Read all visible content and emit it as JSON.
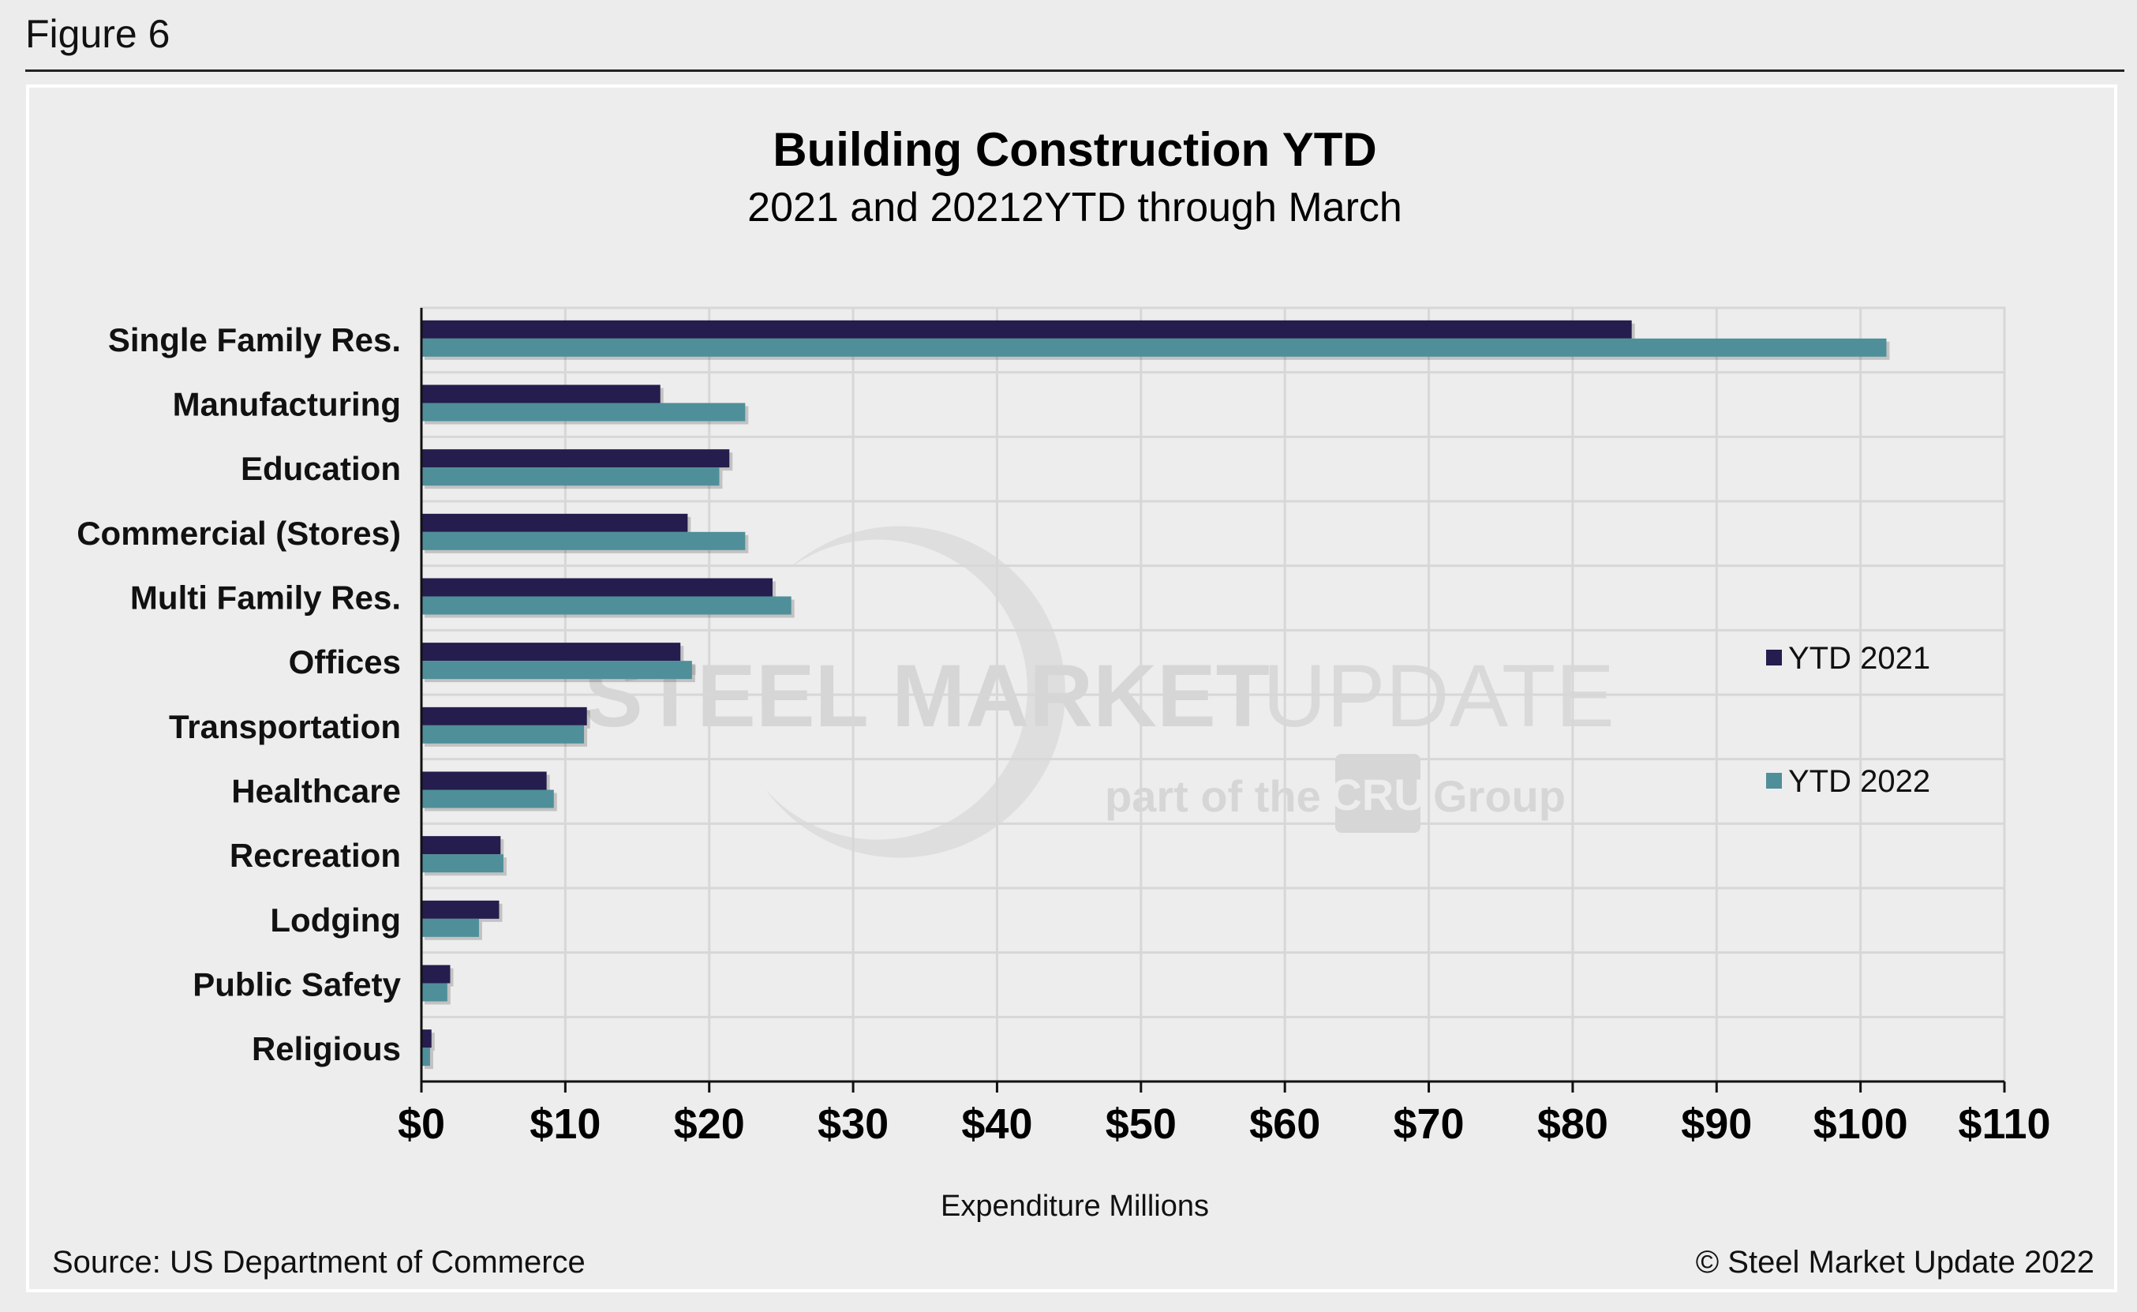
{
  "figure_label": "Figure 6",
  "source_text": "Source: US Department of Commerce",
  "copyright_text": "© Steel Market Update 2022",
  "watermark": {
    "line1_bold": "STEEL MARKET",
    "line1_thin": "UPDATE",
    "line2_a": "part of the",
    "line2_logo": "CRU",
    "line2_b": "Group"
  },
  "colors": {
    "series_2021": "#241d4d",
    "series_2022": "#4f8f99",
    "grid": "#d7d7d7",
    "axis": "#111111"
  },
  "chart_data": {
    "type": "bar",
    "orientation": "horizontal",
    "title": "Building Construction YTD",
    "subtitle": "2021 and 20212YTD through March",
    "xlabel": "Expenditure Millions",
    "ylabel": "",
    "xlim": [
      0,
      110
    ],
    "x_ticks": [
      0,
      10,
      20,
      30,
      40,
      50,
      60,
      70,
      80,
      90,
      100,
      110
    ],
    "x_tick_labels": [
      "$0",
      "$10",
      "$20",
      "$30",
      "$40",
      "$50",
      "$60",
      "$70",
      "$80",
      "$90",
      "$100",
      "$110"
    ],
    "grid": true,
    "legend_position": "right",
    "categories": [
      "Single Family Res.",
      "Manufacturing",
      "Education",
      "Commercial (Stores)",
      "Multi Family Res.",
      "Offices",
      "Transportation",
      "Healthcare",
      "Recreation",
      "Lodging",
      "Public Safety",
      "Religious"
    ],
    "series": [
      {
        "name": "YTD 2021",
        "values": [
          84.1,
          16.6,
          21.4,
          18.5,
          24.4,
          18.0,
          11.5,
          8.7,
          5.5,
          5.4,
          2.0,
          0.7
        ]
      },
      {
        "name": "YTD 2022",
        "values": [
          101.8,
          22.5,
          20.7,
          22.5,
          25.7,
          18.8,
          11.3,
          9.2,
          5.7,
          4.0,
          1.8,
          0.6
        ]
      }
    ]
  }
}
